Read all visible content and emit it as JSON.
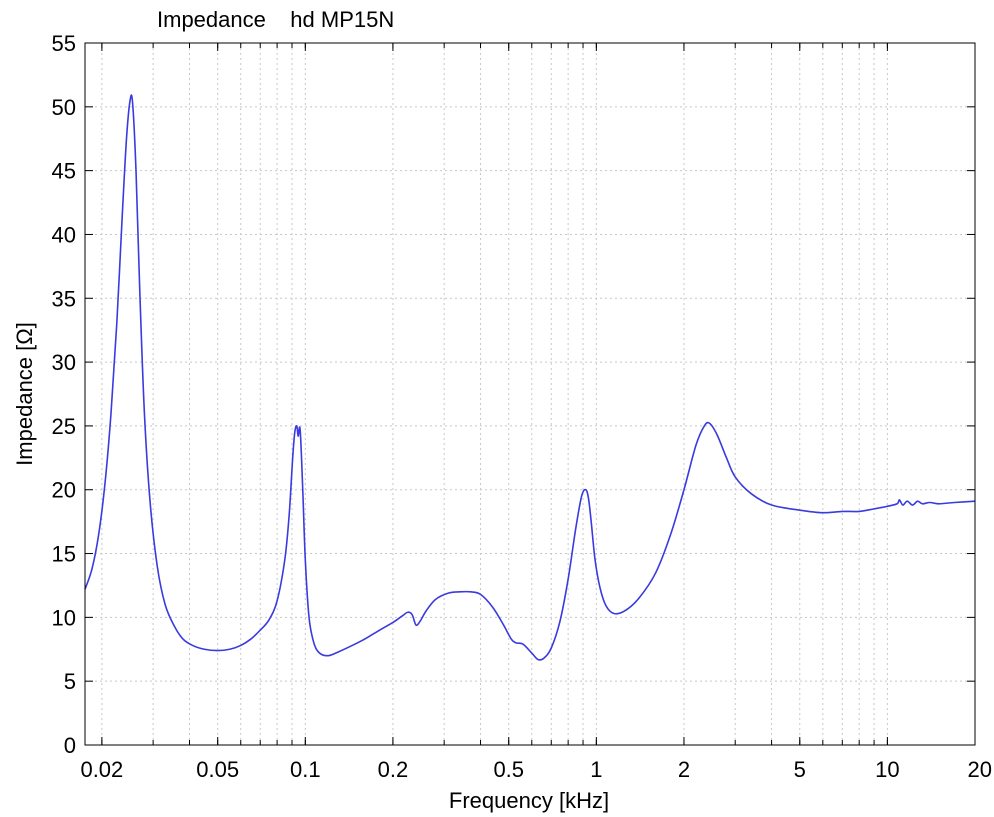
{
  "chart_data": {
    "type": "line",
    "title": "Impedance    hd MP15N",
    "xlabel": "Frequency [kHz]",
    "ylabel": "Impedance [Ω]",
    "x_scale": "log",
    "xlim": [
      0.0175,
      20
    ],
    "ylim": [
      0,
      55
    ],
    "grid": true,
    "x_ticks": [
      0.02,
      0.05,
      0.1,
      0.2,
      0.5,
      1,
      2,
      5,
      10,
      20
    ],
    "x_tick_labels": [
      "0.02",
      "0.05",
      "0.1",
      "0.2",
      "0.5",
      "1",
      "2",
      "5",
      "10",
      "20"
    ],
    "y_ticks": [
      0,
      5,
      10,
      15,
      20,
      25,
      30,
      35,
      40,
      45,
      50,
      55
    ],
    "y_tick_labels": [
      "0",
      "5",
      "10",
      "15",
      "20",
      "25",
      "30",
      "35",
      "40",
      "45",
      "50",
      "55"
    ],
    "line_color": "#3a3ae0",
    "series": [
      {
        "x": [
          0.0175,
          0.0185,
          0.0195,
          0.0205,
          0.0215,
          0.0225,
          0.0235,
          0.0243,
          0.025,
          0.0255,
          0.0262,
          0.027,
          0.028,
          0.0293,
          0.031,
          0.033,
          0.0355,
          0.038,
          0.041,
          0.045,
          0.05,
          0.055,
          0.06,
          0.065,
          0.07,
          0.075,
          0.08,
          0.085,
          0.088,
          0.0905,
          0.092,
          0.0935,
          0.0945,
          0.096,
          0.098,
          0.1,
          0.103,
          0.107,
          0.112,
          0.12,
          0.13,
          0.145,
          0.16,
          0.18,
          0.2,
          0.215,
          0.225,
          0.233,
          0.24,
          0.248,
          0.26,
          0.28,
          0.31,
          0.34,
          0.37,
          0.4,
          0.44,
          0.48,
          0.51,
          0.53,
          0.56,
          0.6,
          0.63,
          0.66,
          0.7,
          0.75,
          0.8,
          0.85,
          0.89,
          0.92,
          0.94,
          0.96,
          0.99,
          1.03,
          1.08,
          1.15,
          1.25,
          1.4,
          1.6,
          1.8,
          2.0,
          2.2,
          2.35,
          2.45,
          2.6,
          2.8,
          3.0,
          3.4,
          4.0,
          5.0,
          6.0,
          7.0,
          8.0,
          9.0,
          10.0,
          10.8,
          11.0,
          11.3,
          11.7,
          12.2,
          12.7,
          13.2,
          14.0,
          15.0,
          17.0,
          20.0
        ],
        "y": [
          12.2,
          13.8,
          16.5,
          20.5,
          26.0,
          33.0,
          41.5,
          47.5,
          50.5,
          50.3,
          45.0,
          35.5,
          26.0,
          19.0,
          14.0,
          11.0,
          9.3,
          8.3,
          7.8,
          7.5,
          7.4,
          7.5,
          7.8,
          8.3,
          9.0,
          9.8,
          11.3,
          14.5,
          18.0,
          22.5,
          24.5,
          25.0,
          24.2,
          24.7,
          20.0,
          14.5,
          10.0,
          8.0,
          7.2,
          7.0,
          7.3,
          7.8,
          8.3,
          9.0,
          9.6,
          10.1,
          10.4,
          10.2,
          9.4,
          9.7,
          10.5,
          11.4,
          11.9,
          12.0,
          12.0,
          11.8,
          10.8,
          9.4,
          8.3,
          8.0,
          7.9,
          7.2,
          6.7,
          6.8,
          7.6,
          9.7,
          13.0,
          17.0,
          19.5,
          20.0,
          19.3,
          17.5,
          14.5,
          12.3,
          10.9,
          10.3,
          10.5,
          11.5,
          13.5,
          16.5,
          20.0,
          23.5,
          25.0,
          25.2,
          24.3,
          22.5,
          21.0,
          19.7,
          18.8,
          18.4,
          18.2,
          18.3,
          18.3,
          18.5,
          18.7,
          18.9,
          19.2,
          18.8,
          19.1,
          18.8,
          19.1,
          18.9,
          19.0,
          18.9,
          19.0,
          19.1
        ]
      }
    ]
  }
}
